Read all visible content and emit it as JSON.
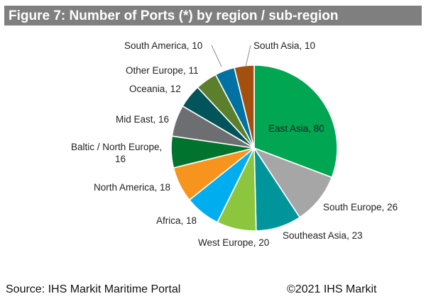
{
  "header": {
    "title": "Figure 7: Number of Ports (*) by region / sub-region"
  },
  "footer": {
    "source": "Source: IHS Markit Maritime Portal",
    "copyright": "©2021 IHS Markit"
  },
  "chart_data": {
    "type": "pie",
    "title": "Figure 7: Number of Ports (*) by region / sub-region",
    "slices": [
      {
        "name": "East Asia",
        "value": 80,
        "color": "#00a651"
      },
      {
        "name": "South Europe",
        "value": 26,
        "color": "#a6a6a6"
      },
      {
        "name": "Southeast Asia",
        "value": 23,
        "color": "#00959a"
      },
      {
        "name": "West Europe",
        "value": 20,
        "color": "#8cc63f"
      },
      {
        "name": "Africa",
        "value": 18,
        "color": "#00aeef"
      },
      {
        "name": "North America",
        "value": 18,
        "color": "#f7941d"
      },
      {
        "name": "Baltic / North Europe",
        "value": 16,
        "color": "#00732e"
      },
      {
        "name": "Mid East",
        "value": 16,
        "color": "#6d6e71"
      },
      {
        "name": "Oceania",
        "value": 12,
        "color": "#00545a"
      },
      {
        "name": "Other Europe",
        "value": 11,
        "color": "#5b7f2b"
      },
      {
        "name": "South America",
        "value": 10,
        "color": "#0071a3"
      },
      {
        "name": "South Asia",
        "value": 10,
        "color": "#a3500f"
      }
    ],
    "labels": [
      "East Asia, 80",
      "South Europe, 26",
      "Southeast Asia, 23",
      "West Europe, 20",
      "Africa, 18",
      "North America, 18",
      [
        "Baltic / North Europe,",
        "16"
      ],
      "Mid East, 16",
      "Oceania, 12",
      "Other Europe, 11",
      "South America, 10",
      "South Asia, 10"
    ]
  }
}
